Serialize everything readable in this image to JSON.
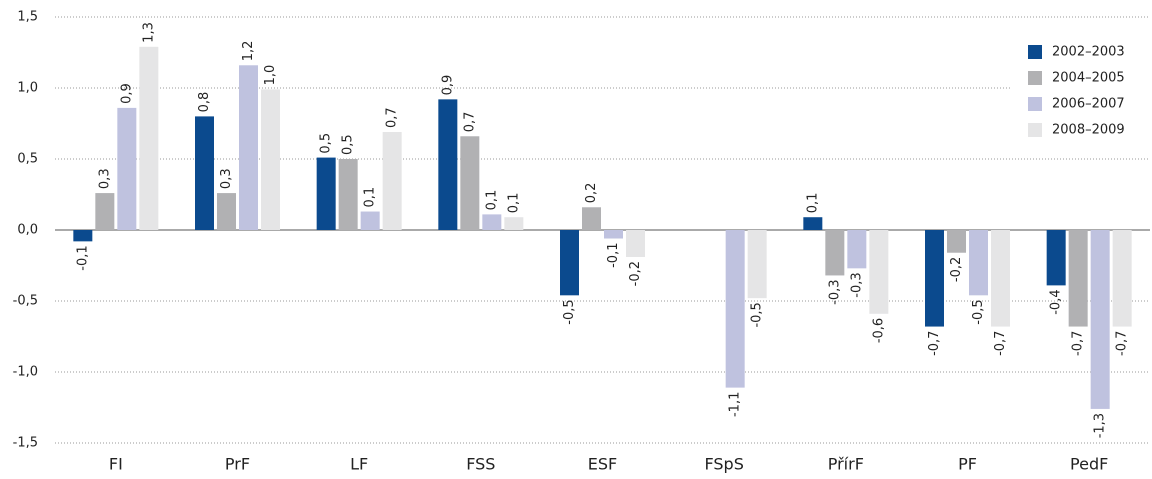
{
  "chart_data": {
    "type": "bar",
    "categories": [
      "FI",
      "PrF",
      "LF",
      "FSS",
      "ESF",
      "FSpS",
      "PřírF",
      "PF",
      "PedF"
    ],
    "series": [
      {
        "name": "2002–2003",
        "color": "#0b4a8e",
        "values": [
          -0.08,
          0.8,
          0.51,
          0.92,
          -0.46,
          null,
          0.09,
          -0.68,
          -0.39
        ],
        "value_labels": [
          "-0,1",
          "0,8",
          "0,5",
          "0,9",
          "-0,5",
          null,
          "0,1",
          "-0,7",
          "-0,4"
        ]
      },
      {
        "name": "2004–2005",
        "color": "#b1b1b3",
        "values": [
          0.26,
          0.26,
          0.5,
          0.66,
          0.16,
          null,
          -0.32,
          -0.16,
          -0.68
        ],
        "value_labels": [
          "0,3",
          "0,3",
          "0,5",
          "0,7",
          "0,2",
          null,
          "-0,3",
          "-0,2",
          "-0,7"
        ]
      },
      {
        "name": "2006–2007",
        "color": "#bfc2df",
        "values": [
          0.86,
          1.16,
          0.13,
          0.11,
          -0.06,
          -1.11,
          -0.27,
          -0.46,
          -1.26
        ],
        "value_labels": [
          "0,9",
          "1,2",
          "0,1",
          "0,1",
          "-0,1",
          "-1,1",
          "-0,3",
          "-0,5",
          "-1,3"
        ]
      },
      {
        "name": "2008–2009",
        "color": "#e5e5e6",
        "values": [
          1.29,
          0.99,
          0.69,
          0.09,
          -0.19,
          -0.48,
          -0.59,
          -0.68,
          -0.68
        ],
        "value_labels": [
          "1,3",
          "1,0",
          "0,7",
          "0,1",
          "-0,2",
          "-0,5",
          "-0,6",
          "-0,7",
          "-0,7"
        ]
      }
    ],
    "ylim": [
      -1.5,
      1.5
    ],
    "yticks": [
      {
        "value": -1.5,
        "label": "-1,5"
      },
      {
        "value": -1.0,
        "label": "-1,0"
      },
      {
        "value": -0.5,
        "label": "-0,5"
      },
      {
        "value": 0,
        "label": "0,0"
      },
      {
        "value": 0.5,
        "label": "0,5"
      },
      {
        "value": 1.0,
        "label": "1,0"
      },
      {
        "value": 1.5,
        "label": "1,5"
      }
    ],
    "grid": true,
    "legend": "upper right"
  }
}
